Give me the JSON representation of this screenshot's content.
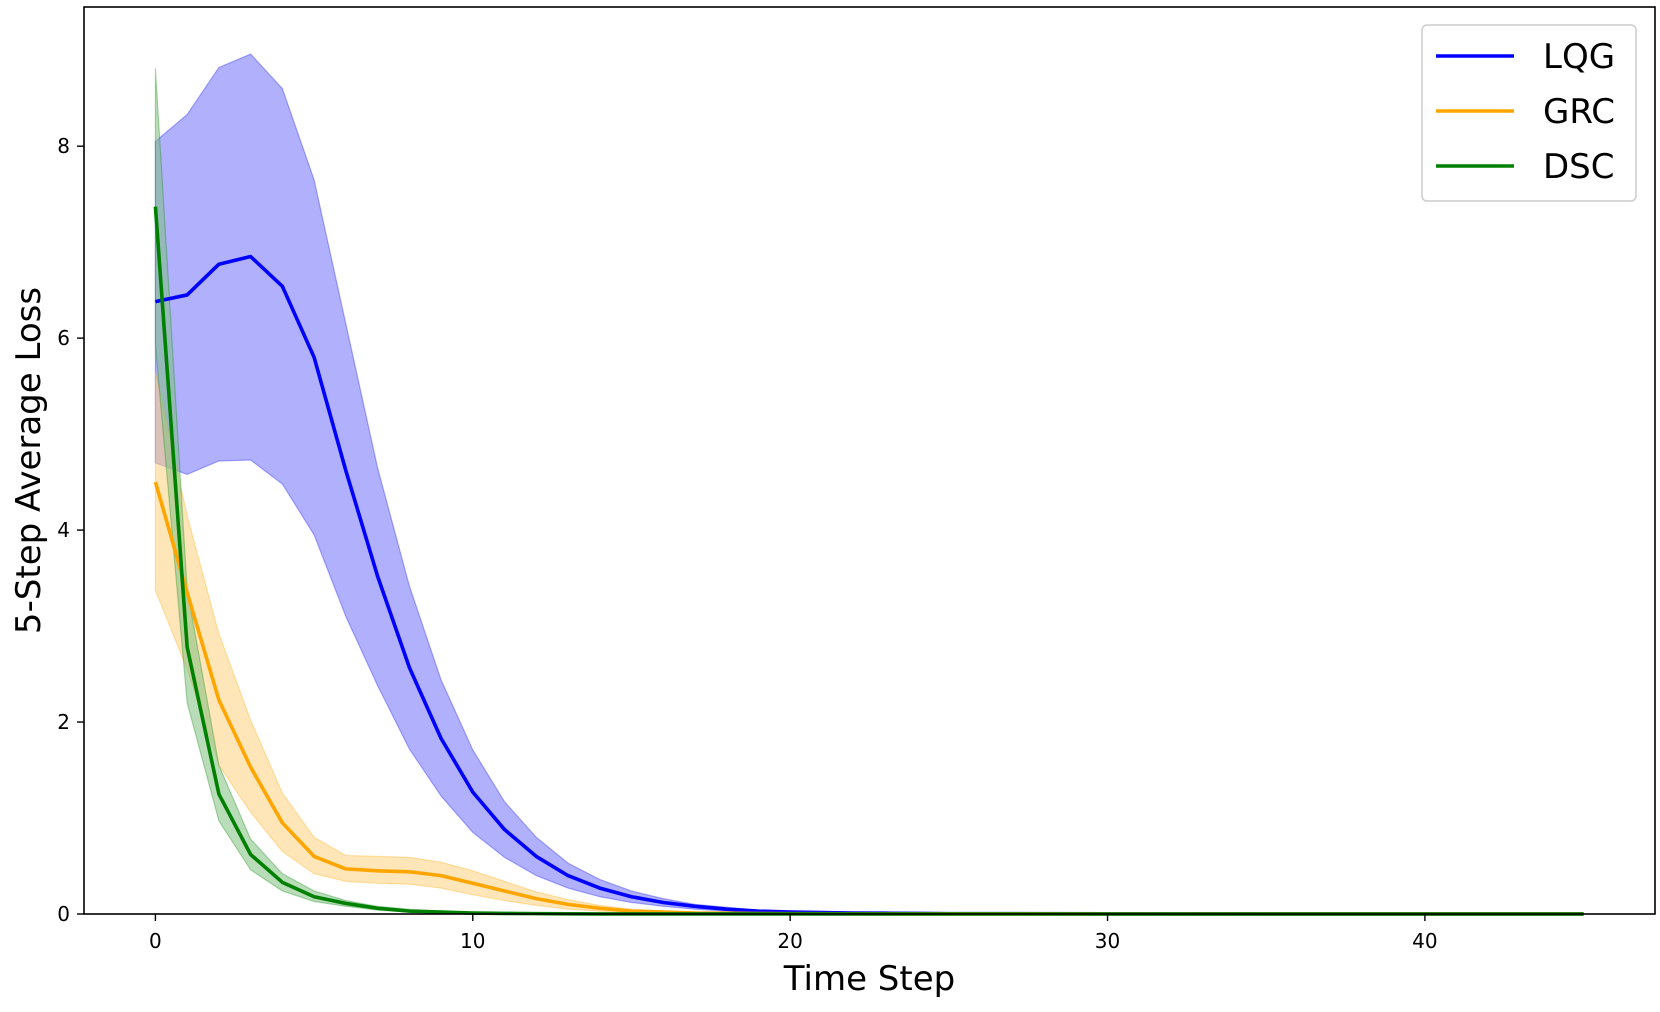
{
  "chart_data": {
    "type": "line",
    "title": "",
    "xlabel": "Time Step",
    "ylabel": "5-Step Average Loss",
    "xlim": [
      -2.25,
      47.25
    ],
    "ylim": [
      0,
      9.45
    ],
    "xticks": [
      0,
      10,
      20,
      30,
      40
    ],
    "yticks": [
      0,
      2,
      4,
      6,
      8
    ],
    "grid": false,
    "legend_position": "top-right",
    "series": [
      {
        "name": "LQG",
        "color": "#0000ff",
        "band_color": "#6f6ffa",
        "x": [
          0,
          1,
          2,
          3,
          4,
          5,
          6,
          7,
          8,
          9,
          10,
          11,
          12,
          13,
          14,
          15,
          16,
          17,
          18,
          19,
          20,
          21,
          22,
          23,
          24,
          25,
          30,
          35,
          40,
          45
        ],
        "mean": [
          6.38,
          6.45,
          6.77,
          6.85,
          6.54,
          5.8,
          4.62,
          3.52,
          2.57,
          1.83,
          1.27,
          0.88,
          0.6,
          0.4,
          0.27,
          0.18,
          0.12,
          0.08,
          0.05,
          0.03,
          0.02,
          0.015,
          0.01,
          0.008,
          0.006,
          0.004,
          0.002,
          0.001,
          0.0005,
          0.0002
        ],
        "upper": [
          8.05,
          8.33,
          8.82,
          8.96,
          8.6,
          7.65,
          6.15,
          4.65,
          3.42,
          2.44,
          1.71,
          1.17,
          0.8,
          0.53,
          0.36,
          0.24,
          0.16,
          0.1,
          0.07,
          0.04,
          0.03,
          0.02,
          0.015,
          0.01,
          0.008,
          0.006,
          0.003,
          0.002,
          0.001,
          0.0005
        ],
        "lower": [
          4.7,
          4.58,
          4.72,
          4.73,
          4.48,
          3.95,
          3.1,
          2.38,
          1.72,
          1.23,
          0.85,
          0.59,
          0.4,
          0.27,
          0.18,
          0.12,
          0.08,
          0.05,
          0.03,
          0.02,
          0.01,
          0.008,
          0.005,
          0.004,
          0.003,
          0.002,
          0.001,
          0.0005,
          0.0002,
          0.0001
        ]
      },
      {
        "name": "GRC",
        "color": "#ffa500",
        "band_color": "#ffd27f",
        "x": [
          0,
          1,
          2,
          3,
          4,
          5,
          6,
          7,
          8,
          9,
          10,
          11,
          12,
          13,
          14,
          15,
          16,
          17,
          18,
          19,
          20,
          25,
          30,
          35,
          40,
          45
        ],
        "mean": [
          4.5,
          3.35,
          2.23,
          1.53,
          0.95,
          0.6,
          0.47,
          0.45,
          0.44,
          0.4,
          0.32,
          0.24,
          0.16,
          0.1,
          0.06,
          0.03,
          0.02,
          0.01,
          0.008,
          0.005,
          0.003,
          0.002,
          0.001,
          0.001,
          0.0005,
          0.0002
        ],
        "upper": [
          5.65,
          4.15,
          2.92,
          2.02,
          1.26,
          0.8,
          0.61,
          0.6,
          0.59,
          0.54,
          0.45,
          0.34,
          0.23,
          0.15,
          0.09,
          0.05,
          0.03,
          0.02,
          0.012,
          0.008,
          0.005,
          0.003,
          0.002,
          0.001,
          0.001,
          0.0005
        ],
        "lower": [
          3.37,
          2.55,
          1.55,
          1.06,
          0.65,
          0.42,
          0.34,
          0.32,
          0.31,
          0.27,
          0.2,
          0.14,
          0.09,
          0.05,
          0.03,
          0.015,
          0.008,
          0.005,
          0.003,
          0.002,
          0.001,
          0.0005,
          0.0003,
          0.0002,
          0.0001,
          0.0001
        ]
      },
      {
        "name": "DSC",
        "color": "#008000",
        "band_color": "#7fbf7f",
        "x": [
          0,
          1,
          2,
          3,
          4,
          5,
          6,
          7,
          8,
          9,
          10,
          11,
          12,
          13,
          14,
          15,
          20,
          25,
          30,
          35,
          40,
          45
        ],
        "mean": [
          7.37,
          2.78,
          1.25,
          0.62,
          0.33,
          0.18,
          0.11,
          0.06,
          0.03,
          0.02,
          0.01,
          0.006,
          0.004,
          0.002,
          0.001,
          0.0008,
          0.0003,
          0.0001,
          0.0001,
          0.0001,
          0.0001,
          0.0001
        ],
        "upper": [
          8.81,
          3.38,
          1.55,
          0.78,
          0.42,
          0.24,
          0.14,
          0.08,
          0.05,
          0.03,
          0.015,
          0.009,
          0.006,
          0.003,
          0.002,
          0.001,
          0.0005,
          0.0002,
          0.0001,
          0.0001,
          0.0001,
          0.0001
        ],
        "lower": [
          5.93,
          2.2,
          0.97,
          0.46,
          0.24,
          0.13,
          0.08,
          0.04,
          0.02,
          0.012,
          0.007,
          0.004,
          0.002,
          0.001,
          0.0008,
          0.0005,
          0.0002,
          0.0001,
          0.0001,
          0.0001,
          0.0001,
          0.0001
        ]
      }
    ]
  }
}
